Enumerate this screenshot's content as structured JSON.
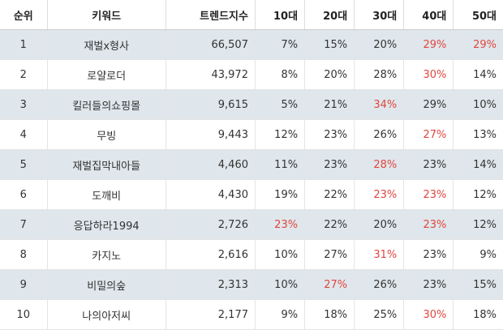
{
  "table": {
    "headers": [
      "순위",
      "키워드",
      "트렌드지수",
      "10대",
      "20대",
      "30대",
      "40대",
      "50대"
    ],
    "highlight_color": "#e0463e",
    "rows": [
      {
        "rank": "1",
        "keyword": "재벌x형사",
        "index": "66,507",
        "ages": [
          "7%",
          "15%",
          "20%",
          "29%",
          "29%"
        ],
        "hl": [
          false,
          false,
          false,
          true,
          true
        ]
      },
      {
        "rank": "2",
        "keyword": "로얄로더",
        "index": "43,972",
        "ages": [
          "8%",
          "20%",
          "28%",
          "30%",
          "14%"
        ],
        "hl": [
          false,
          false,
          false,
          true,
          false
        ]
      },
      {
        "rank": "3",
        "keyword": "킬러들의쇼핑몰",
        "index": "9,615",
        "ages": [
          "5%",
          "21%",
          "34%",
          "29%",
          "10%"
        ],
        "hl": [
          false,
          false,
          true,
          false,
          false
        ]
      },
      {
        "rank": "4",
        "keyword": "무빙",
        "index": "9,443",
        "ages": [
          "12%",
          "23%",
          "26%",
          "27%",
          "13%"
        ],
        "hl": [
          false,
          false,
          false,
          true,
          false
        ]
      },
      {
        "rank": "5",
        "keyword": "재벌집막내아들",
        "index": "4,460",
        "ages": [
          "11%",
          "23%",
          "28%",
          "23%",
          "14%"
        ],
        "hl": [
          false,
          false,
          true,
          false,
          false
        ]
      },
      {
        "rank": "6",
        "keyword": "도깨비",
        "index": "4,430",
        "ages": [
          "19%",
          "22%",
          "23%",
          "23%",
          "12%"
        ],
        "hl": [
          false,
          false,
          true,
          true,
          false
        ]
      },
      {
        "rank": "7",
        "keyword": "응답하라1994",
        "index": "2,726",
        "ages": [
          "23%",
          "22%",
          "20%",
          "23%",
          "12%"
        ],
        "hl": [
          true,
          false,
          false,
          true,
          false
        ]
      },
      {
        "rank": "8",
        "keyword": "카지노",
        "index": "2,616",
        "ages": [
          "10%",
          "27%",
          "31%",
          "23%",
          "9%"
        ],
        "hl": [
          false,
          false,
          true,
          false,
          false
        ]
      },
      {
        "rank": "9",
        "keyword": "비밀의숲",
        "index": "2,313",
        "ages": [
          "10%",
          "27%",
          "26%",
          "23%",
          "15%"
        ],
        "hl": [
          false,
          true,
          false,
          false,
          false
        ]
      },
      {
        "rank": "10",
        "keyword": "나의아저씨",
        "index": "2,177",
        "ages": [
          "9%",
          "18%",
          "25%",
          "30%",
          "18%"
        ],
        "hl": [
          false,
          false,
          false,
          true,
          false
        ]
      }
    ]
  }
}
